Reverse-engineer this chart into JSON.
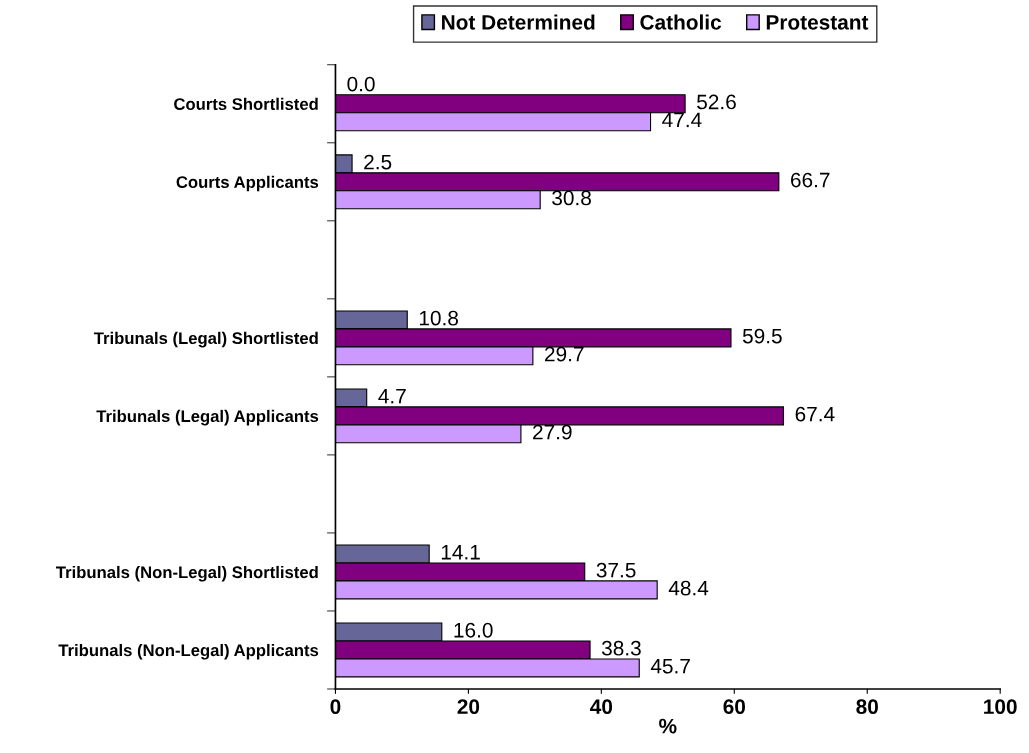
{
  "chart_data": {
    "type": "bar",
    "orientation": "horizontal",
    "xlabel": "%",
    "categories": [
      "Courts Shortlisted",
      "Courts Applicants",
      null,
      "Tribunals (Legal) Shortlisted",
      "Tribunals (Legal) Applicants",
      null,
      "Tribunals (Non-Legal) Shortlisted",
      "Tribunals (Non-Legal) Applicants"
    ],
    "series": [
      {
        "name": "Not Determined",
        "color": "#666699",
        "values": [
          0.0,
          2.5,
          null,
          10.8,
          4.7,
          null,
          14.1,
          16.0
        ],
        "value_labels": [
          "0.0",
          "2.5",
          null,
          "10.8",
          "4.7",
          null,
          "14.1",
          "16.0"
        ]
      },
      {
        "name": "Catholic",
        "color": "#800080",
        "values": [
          52.6,
          66.7,
          null,
          59.5,
          67.4,
          null,
          37.5,
          38.3
        ],
        "value_labels": [
          "52.6",
          "66.7",
          null,
          "59.5",
          "67.4",
          null,
          "37.5",
          "38.3"
        ]
      },
      {
        "name": "Protestant",
        "color": "#cc99ff",
        "values": [
          47.4,
          30.8,
          null,
          29.7,
          27.9,
          null,
          48.4,
          45.7
        ],
        "value_labels": [
          "47.4",
          "30.8",
          null,
          "29.7",
          "27.9",
          null,
          "48.4",
          "45.7"
        ]
      }
    ],
    "xlim": [
      0,
      100
    ],
    "xticks": [
      0,
      20,
      40,
      60,
      80,
      100
    ],
    "grid": false,
    "legend": "top"
  }
}
